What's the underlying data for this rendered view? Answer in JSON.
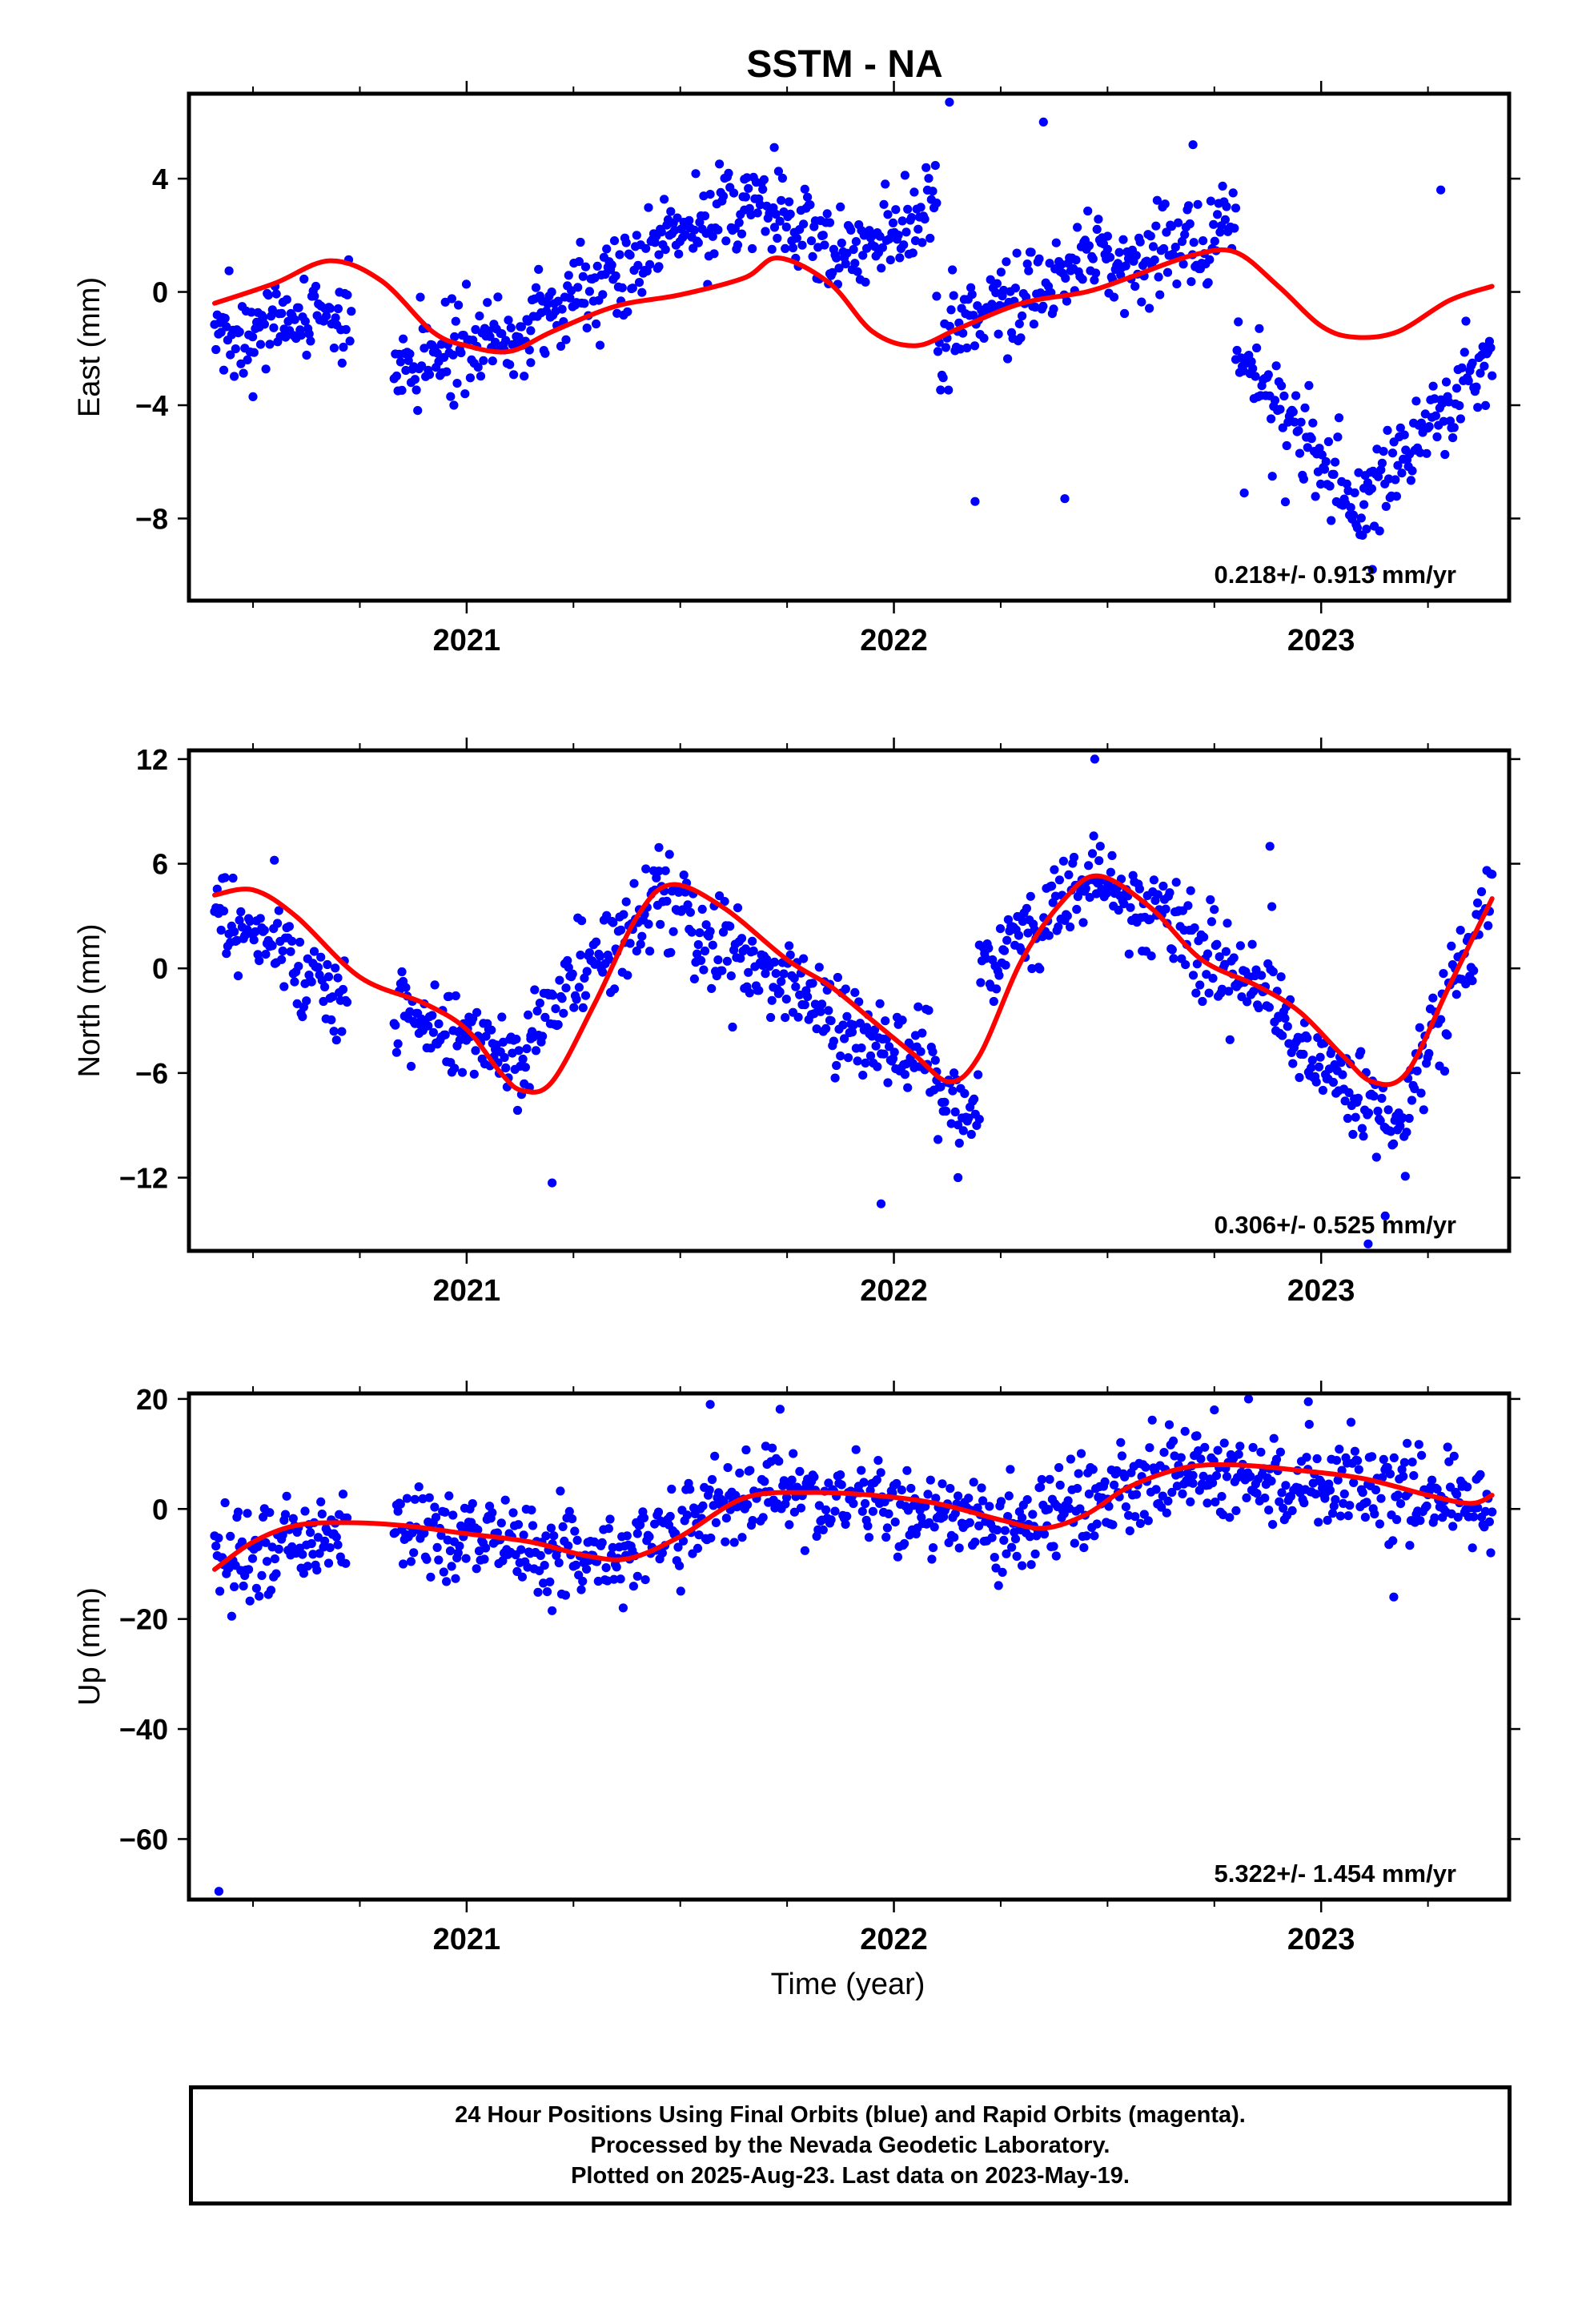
{
  "chart_data": {
    "title": "SSTM - NA",
    "xlabel": "Time (year)",
    "x_tick_labels": [
      "2021",
      "2022",
      "2023"
    ],
    "xlim": [
      2020.35,
      2023.44
    ],
    "panels": [
      {
        "type": "scatter",
        "ylabel": "East (mm)",
        "ylim": [
          -10.9,
          7.0
        ],
        "yticks": [
          -8,
          -4,
          0,
          4
        ],
        "ytick_labels": [
          "−8",
          "−4",
          "0",
          "4"
        ],
        "rate_label": "0.218+/- 0.913 mm/yr",
        "dots_color": "#0000ff",
        "fit_color": "#ff0000",
        "segments": [
          {
            "x": [
              2020.41,
              2020.73
            ],
            "y": [
              -1.6,
              -0.7
            ]
          },
          {
            "x": [
              2020.83,
              2021.15
            ],
            "y": [
              -2.8,
              -1.5
            ]
          },
          {
            "x": [
              2021.15,
              2021.45
            ],
            "y": [
              -1.0,
              1.5
            ]
          },
          {
            "x": [
              2021.45,
              2021.65
            ],
            "y": [
              1.8,
              3.0
            ]
          },
          {
            "x": [
              2021.65,
              2021.85
            ],
            "y": [
              3.3,
              1.8
            ]
          },
          {
            "x": [
              2021.85,
              2022.1
            ],
            "y": [
              1.0,
              3.0
            ]
          },
          {
            "x": [
              2022.1,
              2022.5
            ],
            "y": [
              -2.0,
              1.5
            ]
          },
          {
            "x": [
              2022.5,
              2022.8
            ],
            "y": [
              1.0,
              2.0
            ]
          },
          {
            "x": [
              2022.8,
              2023.1
            ],
            "y": [
              -2.0,
              -8.0
            ]
          },
          {
            "x": [
              2023.1,
              2023.4
            ],
            "y": [
              -7.0,
              -2.5
            ]
          }
        ],
        "outliers": [
          {
            "x": 2022.13,
            "y": 6.7
          },
          {
            "x": 2022.35,
            "y": 6.0
          },
          {
            "x": 2021.72,
            "y": 5.1
          },
          {
            "x": 2022.7,
            "y": 5.2
          },
          {
            "x": 2022.4,
            "y": -7.3
          },
          {
            "x": 2022.19,
            "y": -7.4
          },
          {
            "x": 2022.82,
            "y": -7.1
          },
          {
            "x": 2023.12,
            "y": -9.8
          },
          {
            "x": 2023.28,
            "y": 3.6
          },
          {
            "x": 2020.97,
            "y": -4.0
          },
          {
            "x": 2020.5,
            "y": -3.7
          }
        ],
        "fit": {
          "x": [
            2020.41,
            2020.55,
            2020.68,
            2020.8,
            2020.92,
            2021.0,
            2021.1,
            2021.2,
            2021.35,
            2021.5,
            2021.65,
            2021.73,
            2021.85,
            2021.95,
            2022.05,
            2022.15,
            2022.3,
            2022.45,
            2022.55,
            2022.7,
            2022.8,
            2022.9,
            2023.0,
            2023.08,
            2023.18,
            2023.3,
            2023.4
          ],
          "y": [
            -0.4,
            0.3,
            1.1,
            0.4,
            -1.4,
            -1.9,
            -2.1,
            -1.4,
            -0.5,
            -0.1,
            0.5,
            1.2,
            0.3,
            -1.4,
            -1.9,
            -1.3,
            -0.4,
            0.0,
            0.5,
            1.3,
            1.4,
            0.2,
            -1.2,
            -1.6,
            -1.4,
            -0.3,
            0.2
          ]
        }
      },
      {
        "type": "scatter",
        "ylabel": "North (mm)",
        "ylim": [
          -16.2,
          12.5
        ],
        "yticks": [
          -12,
          -6,
          0,
          6,
          12
        ],
        "ytick_labels": [
          "−12",
          "−6",
          "0",
          "6",
          "12"
        ],
        "rate_label": "0.306+/- 0.525 mm/yr",
        "dots_color": "#0000ff",
        "fit_color": "#ff0000",
        "segments": [
          {
            "x": [
              2020.41,
              2020.72
            ],
            "y": [
              3.5,
              -2.0
            ]
          },
          {
            "x": [
              2020.83,
              2021.15
            ],
            "y": [
              -2.5,
              -5.5
            ]
          },
          {
            "x": [
              2021.15,
              2021.45
            ],
            "y": [
              -3.0,
              4.5
            ]
          },
          {
            "x": [
              2021.45,
              2021.85
            ],
            "y": [
              4.0,
              -2.5
            ]
          },
          {
            "x": [
              2021.85,
              2022.1
            ],
            "y": [
              -3.5,
              -5.5
            ]
          },
          {
            "x": [
              2022.1,
              2022.2
            ],
            "y": [
              -7.0,
              -8.5
            ]
          },
          {
            "x": [
              2022.2,
              2022.48
            ],
            "y": [
              0.0,
              5.5
            ]
          },
          {
            "x": [
              2022.48,
              2022.9
            ],
            "y": [
              5.0,
              -1.5
            ]
          },
          {
            "x": [
              2022.9,
              2023.2
            ],
            "y": [
              -3.0,
              -10.0
            ]
          },
          {
            "x": [
              2023.2,
              2023.4
            ],
            "y": [
              -7.0,
              4.0
            ]
          }
        ],
        "outliers": [
          {
            "x": 2022.47,
            "y": 12.0
          },
          {
            "x": 2021.2,
            "y": -12.3
          },
          {
            "x": 2021.97,
            "y": -13.5
          },
          {
            "x": 2022.15,
            "y": -12.0
          },
          {
            "x": 2023.11,
            "y": -15.8
          },
          {
            "x": 2023.15,
            "y": -14.2
          },
          {
            "x": 2022.88,
            "y": 7.0
          },
          {
            "x": 2020.55,
            "y": 6.2
          }
        ],
        "fit": {
          "x": [
            2020.41,
            2020.5,
            2020.6,
            2020.75,
            2020.9,
            2021.0,
            2021.08,
            2021.13,
            2021.2,
            2021.3,
            2021.4,
            2021.48,
            2021.6,
            2021.75,
            2021.85,
            2021.95,
            2022.05,
            2022.13,
            2022.2,
            2022.3,
            2022.4,
            2022.48,
            2022.6,
            2022.72,
            2022.85,
            2022.95,
            2023.05,
            2023.12,
            2023.2,
            2023.3,
            2023.4
          ],
          "y": [
            4.2,
            4.5,
            3.0,
            -0.5,
            -2.0,
            -3.5,
            -6.0,
            -7.0,
            -6.5,
            -2.0,
            3.0,
            4.8,
            3.5,
            0.5,
            -1.0,
            -3.0,
            -5.0,
            -6.5,
            -5.0,
            0.5,
            4.0,
            5.3,
            3.5,
            0.5,
            -1.0,
            -2.5,
            -5.0,
            -6.5,
            -6.0,
            -1.0,
            4.0
          ]
        }
      },
      {
        "type": "scatter",
        "ylabel": "Up (mm)",
        "ylim": [
          -71.0,
          21.0
        ],
        "yticks": [
          -60,
          -40,
          -20,
          0,
          20
        ],
        "ytick_labels": [
          "−60",
          "−40",
          "−20",
          "0",
          "20"
        ],
        "rate_label": "5.322+/- 1.454 mm/yr",
        "dots_color": "#0000ff",
        "fit_color": "#ff0000",
        "segments": [
          {
            "x": [
              2020.41,
              2020.72
            ],
            "y": [
              -10.0,
              -3.0
            ]
          },
          {
            "x": [
              2020.83,
              2021.4
            ],
            "y": [
              -3.0,
              -9.0
            ]
          },
          {
            "x": [
              2021.4,
              2021.7
            ],
            "y": [
              -6.0,
              4.0
            ]
          },
          {
            "x": [
              2021.7,
              2022.3
            ],
            "y": [
              3.0,
              -3.0
            ]
          },
          {
            "x": [
              2022.3,
              2022.7
            ],
            "y": [
              -3.0,
              8.0
            ]
          },
          {
            "x": [
              2022.7,
              2023.4
            ],
            "y": [
              8.0,
              1.0
            ]
          }
        ],
        "outliers": [
          {
            "x": 2020.42,
            "y": -69.5
          },
          {
            "x": 2020.45,
            "y": -19.5
          },
          {
            "x": 2021.57,
            "y": 19.0
          },
          {
            "x": 2022.83,
            "y": 20.0
          },
          {
            "x": 2022.97,
            "y": 19.5
          },
          {
            "x": 2023.17,
            "y": -16.0
          },
          {
            "x": 2021.2,
            "y": -18.5
          },
          {
            "x": 2022.75,
            "y": 18.0
          }
        ],
        "fit": {
          "x": [
            2020.41,
            2020.5,
            2020.6,
            2020.72,
            2020.85,
            2021.0,
            2021.15,
            2021.28,
            2021.38,
            2021.5,
            2021.65,
            2021.8,
            2021.95,
            2022.1,
            2022.25,
            2022.35,
            2022.45,
            2022.55,
            2022.68,
            2022.8,
            2022.95,
            2023.1,
            2023.25,
            2023.35,
            2023.4
          ],
          "y": [
            -11.0,
            -6.0,
            -3.0,
            -2.5,
            -3.0,
            -4.5,
            -6.0,
            -8.5,
            -9.0,
            -5.0,
            2.0,
            3.0,
            2.5,
            1.0,
            -2.0,
            -3.5,
            -1.0,
            4.0,
            7.5,
            8.0,
            7.0,
            5.5,
            2.5,
            1.0,
            2.5
          ]
        }
      }
    ]
  },
  "footer": {
    "line1": "24 Hour Positions Using Final Orbits (blue) and Rapid Orbits (magenta).",
    "line2": "Processed by the Nevada Geodetic Laboratory.",
    "line3": "Plotted on 2025-Aug-23. Last data on 2023-May-19."
  }
}
